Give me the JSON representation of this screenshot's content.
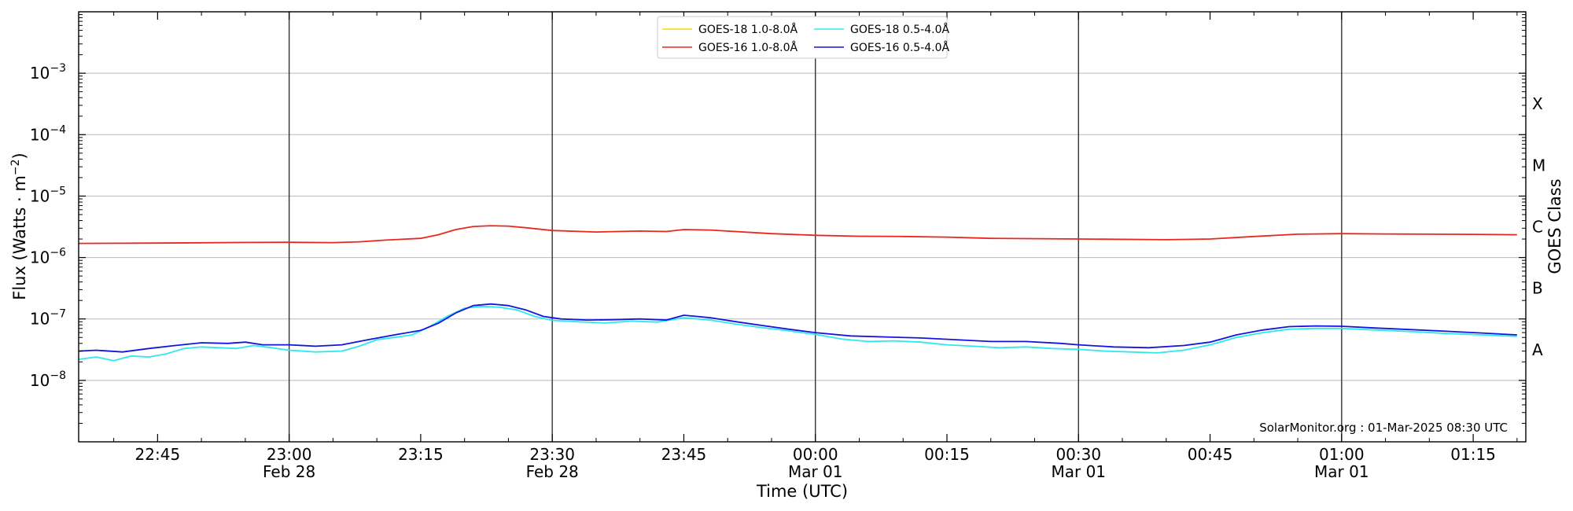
{
  "chart_data": {
    "type": "line",
    "xlabel": "Time (UTC)",
    "ylabel_prefix": "Flux (Watts · m",
    "ylabel_sup": "−2",
    "ylabel_suffix": ")",
    "right_label": "GOES Class",
    "y_scale": "log",
    "ylim": [
      1e-09,
      0.01
    ],
    "xlim": [
      "2025-02-28T22:36",
      "2025-03-01T01:21"
    ],
    "grid": "horizontal at decades; vertical lines every 30 min",
    "legend_position": "top-center",
    "y_ticks": [
      {
        "value": 1e-08,
        "label": "10",
        "exp": "−8"
      },
      {
        "value": 1e-07,
        "label": "10",
        "exp": "−7"
      },
      {
        "value": 1e-06,
        "label": "10",
        "exp": "−6"
      },
      {
        "value": 1e-05,
        "label": "10",
        "exp": "−5"
      },
      {
        "value": 0.0001,
        "label": "10",
        "exp": "−4"
      },
      {
        "value": 0.001,
        "label": "10",
        "exp": "−3"
      }
    ],
    "x_ticks": [
      {
        "time": "2025-02-28T22:45",
        "label": "22:45",
        "sub": ""
      },
      {
        "time": "2025-02-28T23:00",
        "label": "23:00",
        "sub": "Feb 28"
      },
      {
        "time": "2025-02-28T23:15",
        "label": "23:15",
        "sub": ""
      },
      {
        "time": "2025-02-28T23:30",
        "label": "23:30",
        "sub": "Feb 28"
      },
      {
        "time": "2025-02-28T23:45",
        "label": "23:45",
        "sub": ""
      },
      {
        "time": "2025-03-01T00:00",
        "label": "00:00",
        "sub": "Mar 01"
      },
      {
        "time": "2025-03-01T00:15",
        "label": "00:15",
        "sub": ""
      },
      {
        "time": "2025-03-01T00:30",
        "label": "00:30",
        "sub": "Mar 01"
      },
      {
        "time": "2025-03-01T00:45",
        "label": "00:45",
        "sub": ""
      },
      {
        "time": "2025-03-01T01:00",
        "label": "01:00",
        "sub": "Mar 01"
      },
      {
        "time": "2025-03-01T01:15",
        "label": "01:15",
        "sub": ""
      }
    ],
    "vertical_lines": [
      "2025-02-28T23:00",
      "2025-02-28T23:30",
      "2025-03-01T00:00",
      "2025-03-01T00:30",
      "2025-03-01T01:00"
    ],
    "goes_classes": [
      {
        "label": "A",
        "value": 3.16e-08
      },
      {
        "label": "B",
        "value": 3.16e-07
      },
      {
        "label": "C",
        "value": 3.16e-06
      },
      {
        "label": "M",
        "value": 3.16e-05
      },
      {
        "label": "X",
        "value": 0.000316
      }
    ],
    "legend": [
      {
        "label": "GOES-18 1.0-8.0Å",
        "color": "#ffd700",
        "series": "g18_long"
      },
      {
        "label": "GOES-16 1.0-8.0Å",
        "color": "#e8281e",
        "series": "g16_long"
      },
      {
        "label": "GOES-18 0.5-4.0Å",
        "color": "#2ee8f0",
        "series": "g18_short"
      },
      {
        "label": "GOES-16 0.5-4.0Å",
        "color": "#1414e0",
        "series": "g16_short"
      }
    ],
    "series": [
      {
        "id": "g16_long",
        "color": "#e8281e",
        "points": [
          [
            "2025-02-28T22:36",
            1.7e-06
          ],
          [
            "2025-02-28T22:45",
            1.72e-06
          ],
          [
            "2025-02-28T22:55",
            1.76e-06
          ],
          [
            "2025-02-28T23:00",
            1.77e-06
          ],
          [
            "2025-02-28T23:05",
            1.75e-06
          ],
          [
            "2025-02-28T23:08",
            1.8e-06
          ],
          [
            "2025-02-28T23:11",
            1.92e-06
          ],
          [
            "2025-02-28T23:15",
            2.05e-06
          ],
          [
            "2025-02-28T23:17",
            2.35e-06
          ],
          [
            "2025-02-28T23:19",
            2.85e-06
          ],
          [
            "2025-02-28T23:21",
            3.2e-06
          ],
          [
            "2025-02-28T23:23",
            3.3e-06
          ],
          [
            "2025-02-28T23:25",
            3.25e-06
          ],
          [
            "2025-02-28T23:27",
            3.05e-06
          ],
          [
            "2025-02-28T23:30",
            2.75e-06
          ],
          [
            "2025-02-28T23:35",
            2.6e-06
          ],
          [
            "2025-02-28T23:40",
            2.7e-06
          ],
          [
            "2025-02-28T23:43",
            2.65e-06
          ],
          [
            "2025-02-28T23:45",
            2.85e-06
          ],
          [
            "2025-02-28T23:48",
            2.8e-06
          ],
          [
            "2025-02-28T23:55",
            2.45e-06
          ],
          [
            "2025-03-01T00:00",
            2.3e-06
          ],
          [
            "2025-03-01T00:05",
            2.22e-06
          ],
          [
            "2025-03-01T00:10",
            2.2e-06
          ],
          [
            "2025-03-01T00:15",
            2.15e-06
          ],
          [
            "2025-03-01T00:20",
            2.05e-06
          ],
          [
            "2025-03-01T00:30",
            2e-06
          ],
          [
            "2025-03-01T00:40",
            1.95e-06
          ],
          [
            "2025-03-01T00:45",
            2e-06
          ],
          [
            "2025-03-01T00:50",
            2.2e-06
          ],
          [
            "2025-03-01T00:55",
            2.4e-06
          ],
          [
            "2025-03-01T01:00",
            2.45e-06
          ],
          [
            "2025-03-01T01:05",
            2.42e-06
          ],
          [
            "2025-03-01T01:10",
            2.4e-06
          ],
          [
            "2025-03-01T01:15",
            2.38e-06
          ],
          [
            "2025-03-01T01:20",
            2.35e-06
          ]
        ]
      },
      {
        "id": "g18_short",
        "color": "#2ee8f0",
        "points": [
          [
            "2025-02-28T22:36",
            2.2e-08
          ],
          [
            "2025-02-28T22:38",
            2.4e-08
          ],
          [
            "2025-02-28T22:40",
            2.1e-08
          ],
          [
            "2025-02-28T22:42",
            2.5e-08
          ],
          [
            "2025-02-28T22:44",
            2.4e-08
          ],
          [
            "2025-02-28T22:46",
            2.7e-08
          ],
          [
            "2025-02-28T22:48",
            3.3e-08
          ],
          [
            "2025-02-28T22:50",
            3.5e-08
          ],
          [
            "2025-02-28T22:52",
            3.4e-08
          ],
          [
            "2025-02-28T22:54",
            3.3e-08
          ],
          [
            "2025-02-28T22:56",
            3.7e-08
          ],
          [
            "2025-02-28T22:58",
            3.4e-08
          ],
          [
            "2025-02-28T23:00",
            3.1e-08
          ],
          [
            "2025-02-28T23:03",
            2.9e-08
          ],
          [
            "2025-02-28T23:06",
            3e-08
          ],
          [
            "2025-02-28T23:08",
            3.6e-08
          ],
          [
            "2025-02-28T23:10",
            4.6e-08
          ],
          [
            "2025-02-28T23:12",
            5e-08
          ],
          [
            "2025-02-28T23:14",
            5.5e-08
          ],
          [
            "2025-02-28T23:16",
            7.5e-08
          ],
          [
            "2025-02-28T23:18",
            1.1e-07
          ],
          [
            "2025-02-28T23:20",
            1.5e-07
          ],
          [
            "2025-02-28T23:22",
            1.6e-07
          ],
          [
            "2025-02-28T23:24",
            1.55e-07
          ],
          [
            "2025-02-28T23:26",
            1.4e-07
          ],
          [
            "2025-02-28T23:28",
            1.1e-07
          ],
          [
            "2025-02-28T23:30",
            9.5e-08
          ],
          [
            "2025-02-28T23:33",
            9e-08
          ],
          [
            "2025-02-28T23:36",
            8.6e-08
          ],
          [
            "2025-02-28T23:39",
            9.2e-08
          ],
          [
            "2025-02-28T23:42",
            8.9e-08
          ],
          [
            "2025-02-28T23:45",
            1.05e-07
          ],
          [
            "2025-02-28T23:48",
            9.6e-08
          ],
          [
            "2025-02-28T23:51",
            8.2e-08
          ],
          [
            "2025-02-28T23:54",
            7.2e-08
          ],
          [
            "2025-02-28T23:57",
            6.4e-08
          ],
          [
            "2025-03-01T00:00",
            5.6e-08
          ],
          [
            "2025-03-01T00:03",
            4.7e-08
          ],
          [
            "2025-03-01T00:06",
            4.3e-08
          ],
          [
            "2025-03-01T00:09",
            4.4e-08
          ],
          [
            "2025-03-01T00:12",
            4.2e-08
          ],
          [
            "2025-03-01T00:15",
            3.8e-08
          ],
          [
            "2025-03-01T00:18",
            3.6e-08
          ],
          [
            "2025-03-01T00:21",
            3.4e-08
          ],
          [
            "2025-03-01T00:24",
            3.5e-08
          ],
          [
            "2025-03-01T00:27",
            3.3e-08
          ],
          [
            "2025-03-01T00:30",
            3.2e-08
          ],
          [
            "2025-03-01T00:33",
            3e-08
          ],
          [
            "2025-03-01T00:36",
            2.9e-08
          ],
          [
            "2025-03-01T00:39",
            2.8e-08
          ],
          [
            "2025-03-01T00:42",
            3.1e-08
          ],
          [
            "2025-03-01T00:45",
            3.8e-08
          ],
          [
            "2025-03-01T00:48",
            5e-08
          ],
          [
            "2025-03-01T00:51",
            6e-08
          ],
          [
            "2025-03-01T00:54",
            6.8e-08
          ],
          [
            "2025-03-01T00:57",
            7e-08
          ],
          [
            "2025-03-01T01:00",
            7e-08
          ],
          [
            "2025-03-01T01:04",
            6.6e-08
          ],
          [
            "2025-03-01T01:08",
            6.2e-08
          ],
          [
            "2025-03-01T01:12",
            5.8e-08
          ],
          [
            "2025-03-01T01:16",
            5.5e-08
          ],
          [
            "2025-03-01T01:20",
            5.2e-08
          ]
        ]
      },
      {
        "id": "g16_short",
        "color": "#1414e0",
        "points": [
          [
            "2025-02-28T22:36",
            3e-08
          ],
          [
            "2025-02-28T22:38",
            3.1e-08
          ],
          [
            "2025-02-28T22:41",
            2.9e-08
          ],
          [
            "2025-02-28T22:44",
            3.3e-08
          ],
          [
            "2025-02-28T22:47",
            3.7e-08
          ],
          [
            "2025-02-28T22:50",
            4.1e-08
          ],
          [
            "2025-02-28T22:53",
            4e-08
          ],
          [
            "2025-02-28T22:55",
            4.2e-08
          ],
          [
            "2025-02-28T22:57",
            3.8e-08
          ],
          [
            "2025-02-28T23:00",
            3.8e-08
          ],
          [
            "2025-02-28T23:03",
            3.6e-08
          ],
          [
            "2025-02-28T23:06",
            3.8e-08
          ],
          [
            "2025-02-28T23:09",
            4.6e-08
          ],
          [
            "2025-02-28T23:12",
            5.5e-08
          ],
          [
            "2025-02-28T23:15",
            6.5e-08
          ],
          [
            "2025-02-28T23:17",
            8.5e-08
          ],
          [
            "2025-02-28T23:19",
            1.25e-07
          ],
          [
            "2025-02-28T23:21",
            1.65e-07
          ],
          [
            "2025-02-28T23:23",
            1.75e-07
          ],
          [
            "2025-02-28T23:25",
            1.65e-07
          ],
          [
            "2025-02-28T23:27",
            1.4e-07
          ],
          [
            "2025-02-28T23:29",
            1.1e-07
          ],
          [
            "2025-02-28T23:31",
            1e-07
          ],
          [
            "2025-02-28T23:34",
            9.6e-08
          ],
          [
            "2025-02-28T23:37",
            9.7e-08
          ],
          [
            "2025-02-28T23:40",
            1e-07
          ],
          [
            "2025-02-28T23:43",
            9.6e-08
          ],
          [
            "2025-02-28T23:45",
            1.15e-07
          ],
          [
            "2025-02-28T23:48",
            1.05e-07
          ],
          [
            "2025-02-28T23:51",
            9e-08
          ],
          [
            "2025-02-28T23:54",
            7.8e-08
          ],
          [
            "2025-02-28T23:57",
            6.8e-08
          ],
          [
            "2025-03-01T00:00",
            6e-08
          ],
          [
            "2025-03-01T00:04",
            5.3e-08
          ],
          [
            "2025-03-01T00:08",
            5.1e-08
          ],
          [
            "2025-03-01T00:12",
            4.9e-08
          ],
          [
            "2025-03-01T00:16",
            4.6e-08
          ],
          [
            "2025-03-01T00:20",
            4.3e-08
          ],
          [
            "2025-03-01T00:24",
            4.3e-08
          ],
          [
            "2025-03-01T00:28",
            4e-08
          ],
          [
            "2025-03-01T00:30",
            3.8e-08
          ],
          [
            "2025-03-01T00:34",
            3.5e-08
          ],
          [
            "2025-03-01T00:38",
            3.4e-08
          ],
          [
            "2025-03-01T00:42",
            3.7e-08
          ],
          [
            "2025-03-01T00:45",
            4.2e-08
          ],
          [
            "2025-03-01T00:48",
            5.5e-08
          ],
          [
            "2025-03-01T00:51",
            6.6e-08
          ],
          [
            "2025-03-01T00:54",
            7.5e-08
          ],
          [
            "2025-03-01T00:57",
            7.7e-08
          ],
          [
            "2025-03-01T01:00",
            7.6e-08
          ],
          [
            "2025-03-01T01:04",
            7.1e-08
          ],
          [
            "2025-03-01T01:08",
            6.7e-08
          ],
          [
            "2025-03-01T01:12",
            6.3e-08
          ],
          [
            "2025-03-01T01:16",
            5.9e-08
          ],
          [
            "2025-03-01T01:20",
            5.5e-08
          ]
        ]
      }
    ]
  },
  "credit": "SolarMonitor.org : 01-Mar-2025 08:30 UTC"
}
